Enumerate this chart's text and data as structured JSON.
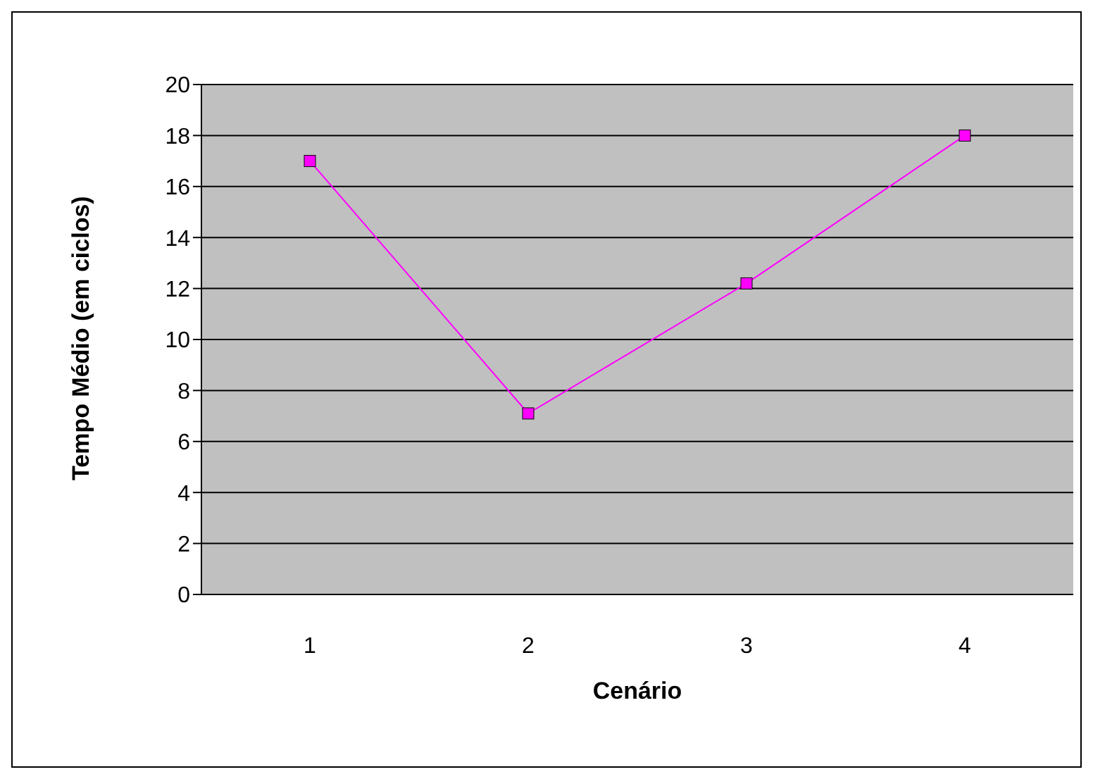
{
  "chart_data": {
    "type": "line",
    "xlabel": "Cenário",
    "ylabel": "Tempo Médio (em ciclos)",
    "categories": [
      "1",
      "2",
      "3",
      "4"
    ],
    "series": [
      {
        "color": "#ff00ff",
        "values": [
          17,
          7.1,
          12.2,
          18
        ]
      }
    ],
    "ylim": [
      0,
      20
    ],
    "yticks": [
      0,
      2,
      4,
      6,
      8,
      10,
      12,
      14,
      16,
      18,
      20
    ],
    "grid": "y",
    "legend": false,
    "marker": "square",
    "line_style": "solid"
  }
}
